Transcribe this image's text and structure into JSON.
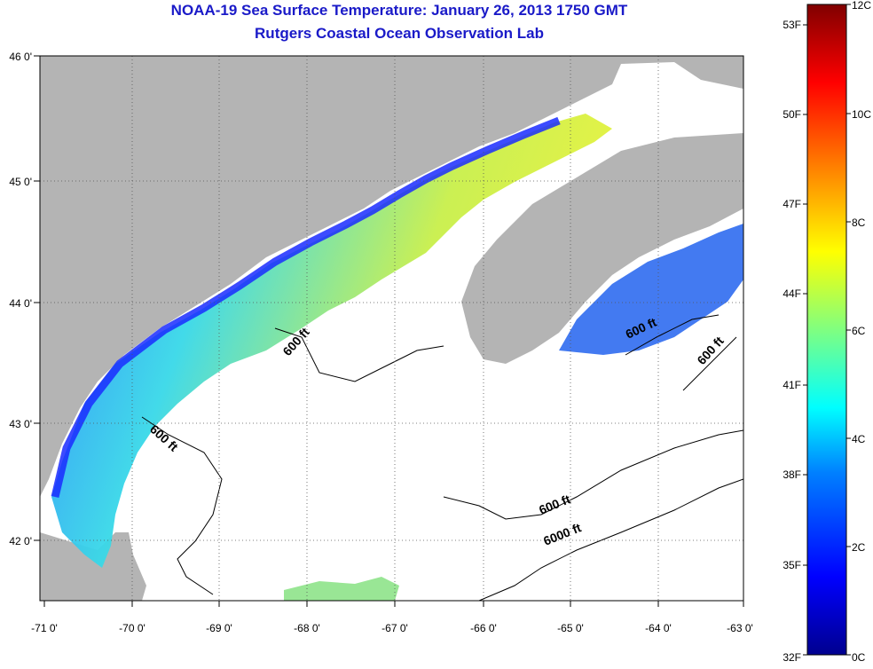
{
  "title": "NOAA-19 Sea Surface Temperature:  January 26, 2013 1750 GMT",
  "subtitle": "Rutgers Coastal Ocean Observation Lab",
  "lon_ticks": [
    "-71 0'",
    "-70 0'",
    "-69 0'",
    "-68 0'",
    "-67 0'",
    "-66 0'",
    "-65 0'",
    "-64 0'",
    "-63 0'"
  ],
  "lat_ticks": [
    "46 0'",
    "45 0'",
    "44 0'",
    "43 0'",
    "42 0'"
  ],
  "colorbar": {
    "fahrenheit": [
      "53F",
      "50F",
      "47F",
      "44F",
      "41F",
      "38F",
      "35F",
      "32F"
    ],
    "celsius": [
      "12C",
      "10C",
      "8C",
      "6C",
      "4C",
      "2C",
      "0C"
    ]
  },
  "contour_labels": [
    "600 ft",
    "600 ft",
    "600 ft",
    "600 ft",
    "600 ft",
    "6000 ft"
  ],
  "colors": {
    "land": "#b4b4b4",
    "title": "#1a1ac8",
    "cold": "#1a2cff",
    "cool": "#17c9e8",
    "mild": "#e8f23a"
  }
}
